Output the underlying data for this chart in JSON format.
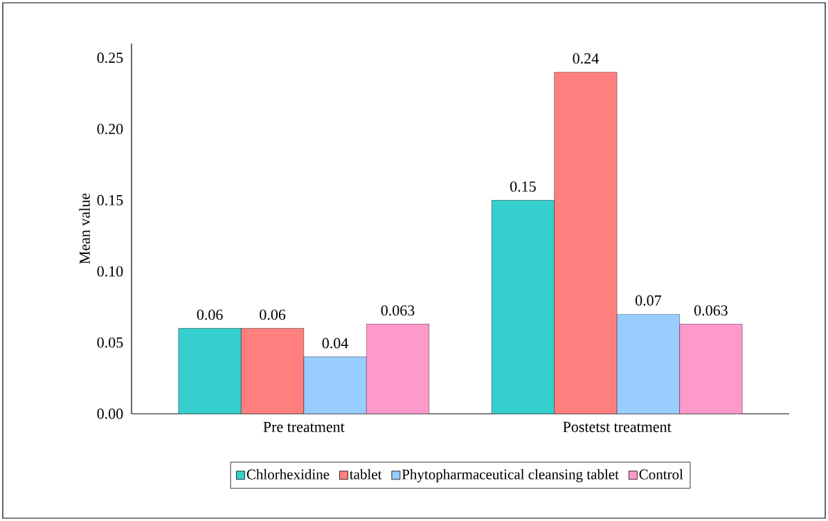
{
  "chart_data": {
    "type": "bar",
    "ylabel": "Mean value",
    "categories": [
      "Pre treatment",
      "Postetst treatment"
    ],
    "series": [
      {
        "name": "Chlorhexidine",
        "color": "#36cfcf",
        "values": [
          0.06,
          0.15
        ]
      },
      {
        "name": "tablet",
        "color": "#ff7f7f",
        "values": [
          0.06,
          0.24
        ]
      },
      {
        "name": "Phytopharmaceutical cleansing tablet",
        "color": "#99ccff",
        "values": [
          0.04,
          0.07
        ]
      },
      {
        "name": "Control",
        "color": "#ff99cc",
        "values": [
          0.063,
          0.063
        ]
      }
    ],
    "ylim": [
      0,
      0.26
    ],
    "yticks": [
      {
        "value": 0,
        "label": "0.00"
      },
      {
        "value": 0.05,
        "label": "0.05"
      },
      {
        "value": 0.1,
        "label": "0.10"
      },
      {
        "value": 0.15,
        "label": "0.15"
      },
      {
        "value": 0.2,
        "label": "0.20"
      },
      {
        "value": 0.25,
        "label": "0.25"
      }
    ],
    "data_labels": true,
    "legend": "bottom",
    "grid": false
  }
}
